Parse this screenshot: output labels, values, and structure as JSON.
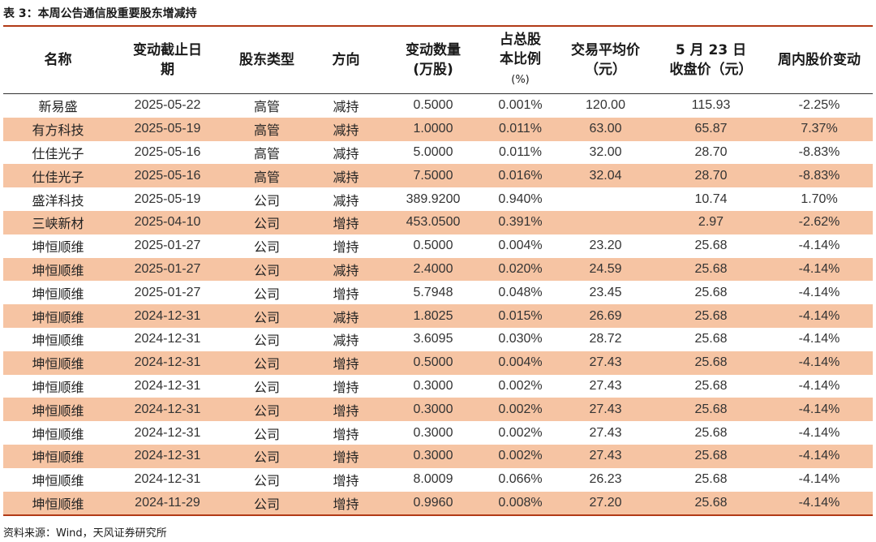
{
  "title": "表 3：本周公告通信股重要股东增减持",
  "headers": {
    "name": "名称",
    "date_line1": "变动截止日",
    "date_line2": "期",
    "holder_type": "股东类型",
    "direction": "方向",
    "qty_line1": "变动数量",
    "qty_line2": "(万股)",
    "ratio_line1": "占总股",
    "ratio_line2": "本比例",
    "ratio_line3": "(%)",
    "price_line1": "交易平均价",
    "price_line2": "（元）",
    "close_line1": "5 月 23 日",
    "close_line2": "收盘价（元）",
    "weekly_change": "周内股价变动"
  },
  "rows": [
    {
      "name": "新易盛",
      "date": "2025-05-22",
      "type": "高管",
      "dir": "减持",
      "qty": "0.5000",
      "ratio": "0.001%",
      "avg_price": "120.00",
      "close": "115.93",
      "change": "-2.25%",
      "shaded": false
    },
    {
      "name": "有方科技",
      "date": "2025-05-19",
      "type": "高管",
      "dir": "减持",
      "qty": "1.0000",
      "ratio": "0.011%",
      "avg_price": "63.00",
      "close": "65.87",
      "change": "7.37%",
      "shaded": true
    },
    {
      "name": "仕佳光子",
      "date": "2025-05-16",
      "type": "高管",
      "dir": "减持",
      "qty": "5.0000",
      "ratio": "0.011%",
      "avg_price": "32.00",
      "close": "28.70",
      "change": "-8.83%",
      "shaded": false
    },
    {
      "name": "仕佳光子",
      "date": "2025-05-16",
      "type": "高管",
      "dir": "减持",
      "qty": "7.5000",
      "ratio": "0.016%",
      "avg_price": "32.04",
      "close": "28.70",
      "change": "-8.83%",
      "shaded": true
    },
    {
      "name": "盛洋科技",
      "date": "2025-05-19",
      "type": "公司",
      "dir": "减持",
      "qty": "389.9200",
      "ratio": "0.940%",
      "avg_price": "",
      "close": "10.74",
      "change": "1.70%",
      "shaded": false
    },
    {
      "name": "三峡新材",
      "date": "2025-04-10",
      "type": "公司",
      "dir": "增持",
      "qty": "453.0500",
      "ratio": "0.391%",
      "avg_price": "",
      "close": "2.97",
      "change": "-2.62%",
      "shaded": true
    },
    {
      "name": "坤恒顺维",
      "date": "2025-01-27",
      "type": "公司",
      "dir": "增持",
      "qty": "0.5000",
      "ratio": "0.004%",
      "avg_price": "23.20",
      "close": "25.68",
      "change": "-4.14%",
      "shaded": false
    },
    {
      "name": "坤恒顺维",
      "date": "2025-01-27",
      "type": "公司",
      "dir": "减持",
      "qty": "2.4000",
      "ratio": "0.020%",
      "avg_price": "24.59",
      "close": "25.68",
      "change": "-4.14%",
      "shaded": true
    },
    {
      "name": "坤恒顺维",
      "date": "2025-01-27",
      "type": "公司",
      "dir": "增持",
      "qty": "5.7948",
      "ratio": "0.048%",
      "avg_price": "23.45",
      "close": "25.68",
      "change": "-4.14%",
      "shaded": false
    },
    {
      "name": "坤恒顺维",
      "date": "2024-12-31",
      "type": "公司",
      "dir": "减持",
      "qty": "1.8025",
      "ratio": "0.015%",
      "avg_price": "26.69",
      "close": "25.68",
      "change": "-4.14%",
      "shaded": true
    },
    {
      "name": "坤恒顺维",
      "date": "2024-12-31",
      "type": "公司",
      "dir": "减持",
      "qty": "3.6095",
      "ratio": "0.030%",
      "avg_price": "28.72",
      "close": "25.68",
      "change": "-4.14%",
      "shaded": false
    },
    {
      "name": "坤恒顺维",
      "date": "2024-12-31",
      "type": "公司",
      "dir": "增持",
      "qty": "0.5000",
      "ratio": "0.004%",
      "avg_price": "27.43",
      "close": "25.68",
      "change": "-4.14%",
      "shaded": true
    },
    {
      "name": "坤恒顺维",
      "date": "2024-12-31",
      "type": "公司",
      "dir": "增持",
      "qty": "0.3000",
      "ratio": "0.002%",
      "avg_price": "27.43",
      "close": "25.68",
      "change": "-4.14%",
      "shaded": false
    },
    {
      "name": "坤恒顺维",
      "date": "2024-12-31",
      "type": "公司",
      "dir": "增持",
      "qty": "0.3000",
      "ratio": "0.002%",
      "avg_price": "27.43",
      "close": "25.68",
      "change": "-4.14%",
      "shaded": true
    },
    {
      "name": "坤恒顺维",
      "date": "2024-12-31",
      "type": "公司",
      "dir": "增持",
      "qty": "0.3000",
      "ratio": "0.002%",
      "avg_price": "27.43",
      "close": "25.68",
      "change": "-4.14%",
      "shaded": false
    },
    {
      "name": "坤恒顺维",
      "date": "2024-12-31",
      "type": "公司",
      "dir": "增持",
      "qty": "0.3000",
      "ratio": "0.002%",
      "avg_price": "27.43",
      "close": "25.68",
      "change": "-4.14%",
      "shaded": true
    },
    {
      "name": "坤恒顺维",
      "date": "2024-12-31",
      "type": "公司",
      "dir": "增持",
      "qty": "8.0009",
      "ratio": "0.066%",
      "avg_price": "26.23",
      "close": "25.68",
      "change": "-4.14%",
      "shaded": false
    },
    {
      "name": "坤恒顺维",
      "date": "2024-11-29",
      "type": "公司",
      "dir": "增持",
      "qty": "0.9960",
      "ratio": "0.008%",
      "avg_price": "27.20",
      "close": "25.68",
      "change": "-4.14%",
      "shaded": true
    }
  ],
  "source": "资料来源：Wind，天风证券研究所",
  "colors": {
    "accent": "#b23a17",
    "row_shade": "#f6c4a3"
  }
}
